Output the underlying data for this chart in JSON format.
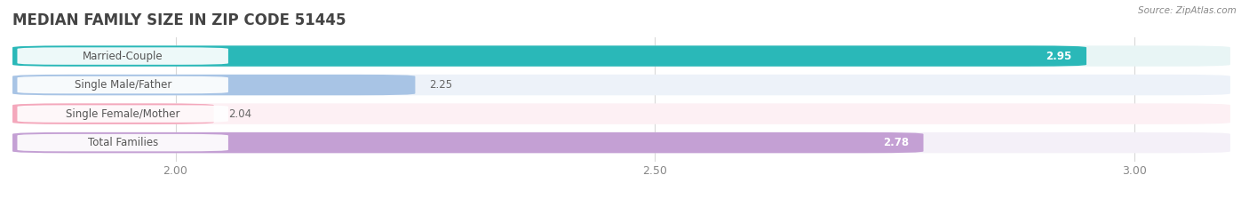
{
  "title": "MEDIAN FAMILY SIZE IN ZIP CODE 51445",
  "source": "Source: ZipAtlas.com",
  "categories": [
    "Married-Couple",
    "Single Male/Father",
    "Single Female/Mother",
    "Total Families"
  ],
  "values": [
    2.95,
    2.25,
    2.04,
    2.78
  ],
  "bar_colors": [
    "#2ab8b8",
    "#a8c4e5",
    "#f4a8bc",
    "#c4a0d4"
  ],
  "bar_bg_colors": [
    "#e8f5f5",
    "#edf2f9",
    "#fdf0f4",
    "#f4f0f8"
  ],
  "label_text_color": "#555555",
  "value_label_colors": [
    "#ffffff",
    "#666666",
    "#666666",
    "#ffffff"
  ],
  "xlim_min": 1.83,
  "xlim_max": 3.1,
  "xticks": [
    2.0,
    2.5,
    3.0
  ],
  "title_fontsize": 12,
  "label_fontsize": 8.5,
  "value_fontsize": 8.5,
  "background_color": "#ffffff",
  "tick_label_color": "#888888"
}
